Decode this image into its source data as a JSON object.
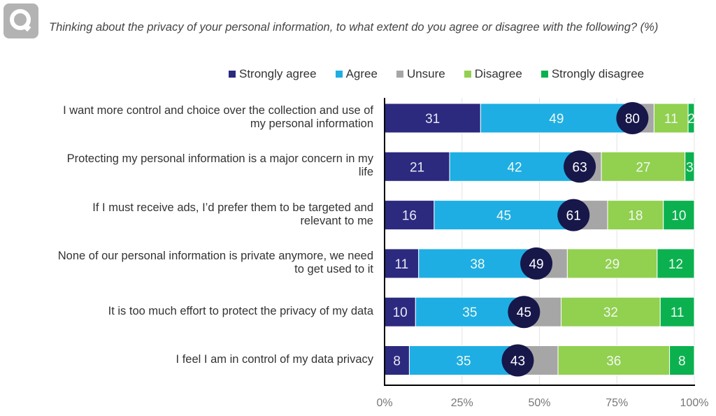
{
  "logo": {
    "icon": "q-logo-icon"
  },
  "chart_data": {
    "type": "bar",
    "orientation": "horizontal",
    "stacked": true,
    "title": "Thinking about the privacy of your personal information, to what extent do you agree or disagree with the following? (%)",
    "xlabel": "",
    "ylabel": "",
    "xlim": [
      0,
      100
    ],
    "xticks": [
      "0%",
      "25%",
      "50%",
      "75%",
      "100%"
    ],
    "grid": true,
    "legend_position": "top-right",
    "categories": [
      "I want more control and choice over the collection and use of my personal information",
      "Protecting my personal information is a major concern in my life",
      "If I must receive ads, I’d prefer them to be targeted and relevant to me",
      "None of our personal information is private anymore, we need to get used to it",
      "It is too much effort to protect the privacy of my data",
      "I feel I am in control of my data privacy"
    ],
    "category_lines": [
      [
        "I want more control and choice over the collection and use of",
        "my personal information"
      ],
      [
        "Protecting my personal information is a major concern in my",
        "life"
      ],
      [
        "If I must receive ads, I’d prefer them to be targeted and",
        "relevant to me"
      ],
      [
        "None of our personal information is private anymore, we need",
        "to get used to it"
      ],
      [
        "It is too much effort to protect the privacy of my data"
      ],
      [
        "I feel I am in control of my data privacy"
      ]
    ],
    "series": [
      {
        "name": "Strongly agree",
        "color": "#2b2a7f",
        "values": [
          31,
          21,
          16,
          11,
          10,
          8
        ],
        "labeled": true
      },
      {
        "name": "Agree",
        "color": "#1eaee3",
        "values": [
          49,
          42,
          45,
          38,
          35,
          35
        ],
        "labeled": true
      },
      {
        "name": "Unsure",
        "color": "#a6a6a6",
        "values": [
          7,
          7,
          11,
          10,
          12,
          13
        ],
        "labeled": false
      },
      {
        "name": "Disagree",
        "color": "#92d050",
        "values": [
          11,
          27,
          18,
          29,
          32,
          36
        ],
        "labeled": true
      },
      {
        "name": "Strongly disagree",
        "color": "#0bb14f",
        "values": [
          2,
          3,
          10,
          12,
          11,
          8
        ],
        "labeled": true
      }
    ],
    "total_agree": {
      "color": "#17174a",
      "values": [
        80,
        63,
        61,
        49,
        45,
        43
      ]
    }
  }
}
